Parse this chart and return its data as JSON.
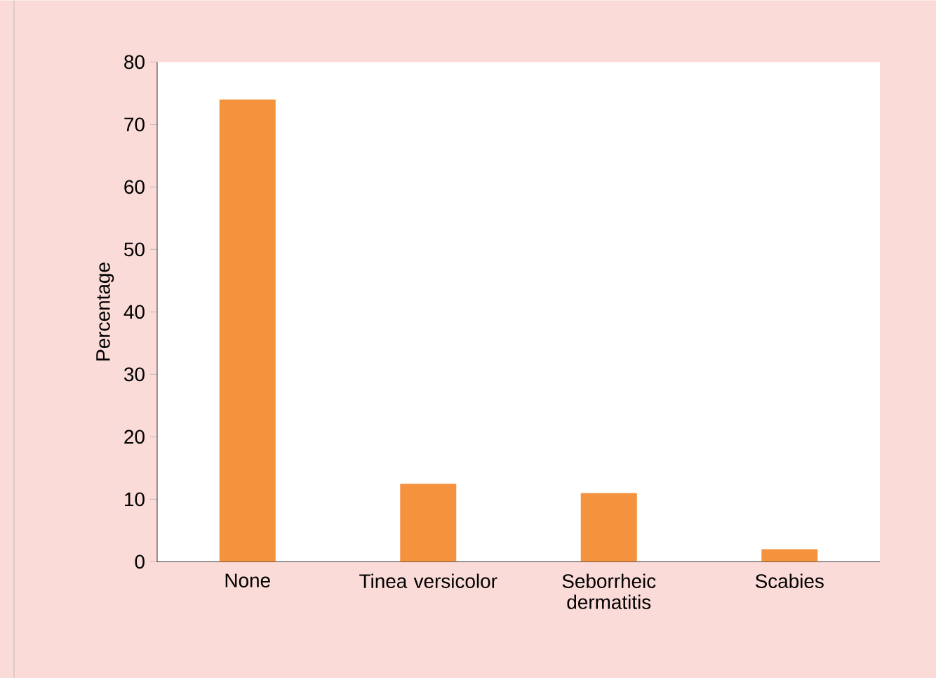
{
  "chart_data": {
    "type": "bar",
    "ylabel": "Percentage",
    "categories": [
      "None",
      "Tinea versicolor",
      "Seborrheic dermatitis",
      "Scabies"
    ],
    "values": [
      74,
      12.5,
      11,
      2
    ],
    "color": "#f5923e",
    "ylim": [
      0,
      80
    ],
    "yticks": [
      0,
      10,
      20,
      30,
      40,
      50,
      60,
      70,
      80
    ],
    "grid": false
  }
}
